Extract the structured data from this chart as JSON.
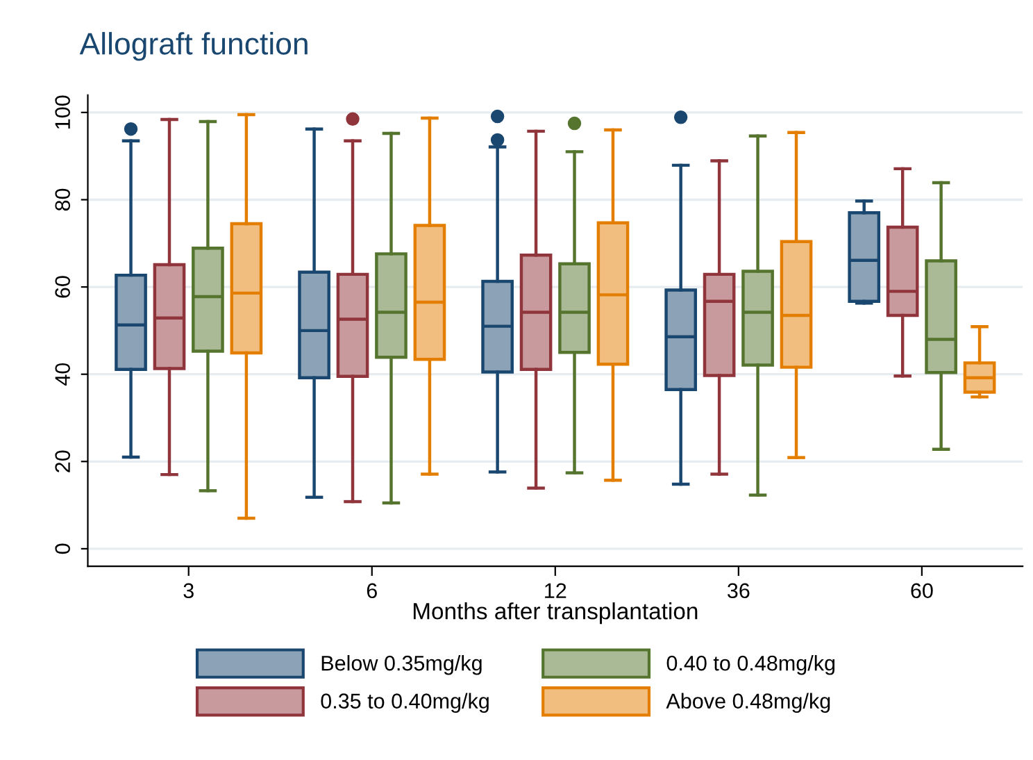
{
  "chart_data": {
    "type": "box",
    "title": "Allograft function",
    "xlabel": "Months after transplantation",
    "categories": [
      "3",
      "6",
      "12",
      "36",
      "60"
    ],
    "ylim": [
      -4,
      104
    ],
    "yticks": [
      0,
      20,
      40,
      60,
      80,
      100
    ],
    "grid": "y",
    "legend": "bottom",
    "series": [
      {
        "name": "Below 0.35mg/kg",
        "color": "#1a476f",
        "boxes": [
          {
            "low": 21.0,
            "q1": 41.1,
            "median": 51.3,
            "q3": 62.7,
            "high": 93.5,
            "outliers": [
              96.2
            ]
          },
          {
            "low": 11.8,
            "q1": 39.2,
            "median": 50.0,
            "q3": 63.4,
            "high": 96.2
          },
          {
            "low": 17.6,
            "q1": 40.5,
            "median": 51.0,
            "q3": 61.3,
            "high": 92.1,
            "outliers": [
              93.7,
              99.1
            ]
          },
          {
            "low": 14.8,
            "q1": 36.5,
            "median": 48.6,
            "q3": 59.3,
            "high": 87.9,
            "outliers": [
              98.9
            ]
          },
          {
            "low": 56.3,
            "q1": 56.7,
            "median": 66.1,
            "q3": 77.0,
            "high": 79.7
          }
        ]
      },
      {
        "name": "0.35 to 0.40mg/kg",
        "color": "#90353b",
        "boxes": [
          {
            "low": 17.0,
            "q1": 41.3,
            "median": 52.9,
            "q3": 65.1,
            "high": 98.4
          },
          {
            "low": 10.8,
            "q1": 39.5,
            "median": 52.6,
            "q3": 62.9,
            "high": 93.5,
            "outliers": [
              98.5
            ]
          },
          {
            "low": 13.9,
            "q1": 41.1,
            "median": 54.2,
            "q3": 67.3,
            "high": 95.7
          },
          {
            "low": 17.1,
            "q1": 39.7,
            "median": 56.7,
            "q3": 62.9,
            "high": 88.9
          },
          {
            "low": 39.6,
            "q1": 53.5,
            "median": 59.0,
            "q3": 73.7,
            "high": 87.1
          }
        ]
      },
      {
        "name": "0.40 to 0.48mg/kg",
        "color": "#55752f",
        "boxes": [
          {
            "low": 13.3,
            "q1": 45.3,
            "median": 57.8,
            "q3": 68.9,
            "high": 97.9
          },
          {
            "low": 10.5,
            "q1": 43.9,
            "median": 54.2,
            "q3": 67.6,
            "high": 95.2
          },
          {
            "low": 17.4,
            "q1": 45.0,
            "median": 54.2,
            "q3": 65.3,
            "high": 91.0,
            "outliers": [
              97.5
            ]
          },
          {
            "low": 12.3,
            "q1": 42.1,
            "median": 54.2,
            "q3": 63.6,
            "high": 94.6
          },
          {
            "low": 22.8,
            "q1": 40.4,
            "median": 48.0,
            "q3": 66.0,
            "high": 83.9
          }
        ]
      },
      {
        "name": "Above 0.48mg/kg",
        "color": "#e37e00",
        "boxes": [
          {
            "low": 7.0,
            "q1": 44.9,
            "median": 58.6,
            "q3": 74.5,
            "high": 99.5
          },
          {
            "low": 17.1,
            "q1": 43.4,
            "median": 56.5,
            "q3": 74.1,
            "high": 98.7
          },
          {
            "low": 15.7,
            "q1": 42.3,
            "median": 58.2,
            "q3": 74.7,
            "high": 96.0
          },
          {
            "low": 20.9,
            "q1": 41.6,
            "median": 53.5,
            "q3": 70.4,
            "high": 95.4
          },
          {
            "low": 34.8,
            "q1": 35.9,
            "median": 39.2,
            "q3": 42.6,
            "high": 50.9
          }
        ]
      }
    ]
  }
}
